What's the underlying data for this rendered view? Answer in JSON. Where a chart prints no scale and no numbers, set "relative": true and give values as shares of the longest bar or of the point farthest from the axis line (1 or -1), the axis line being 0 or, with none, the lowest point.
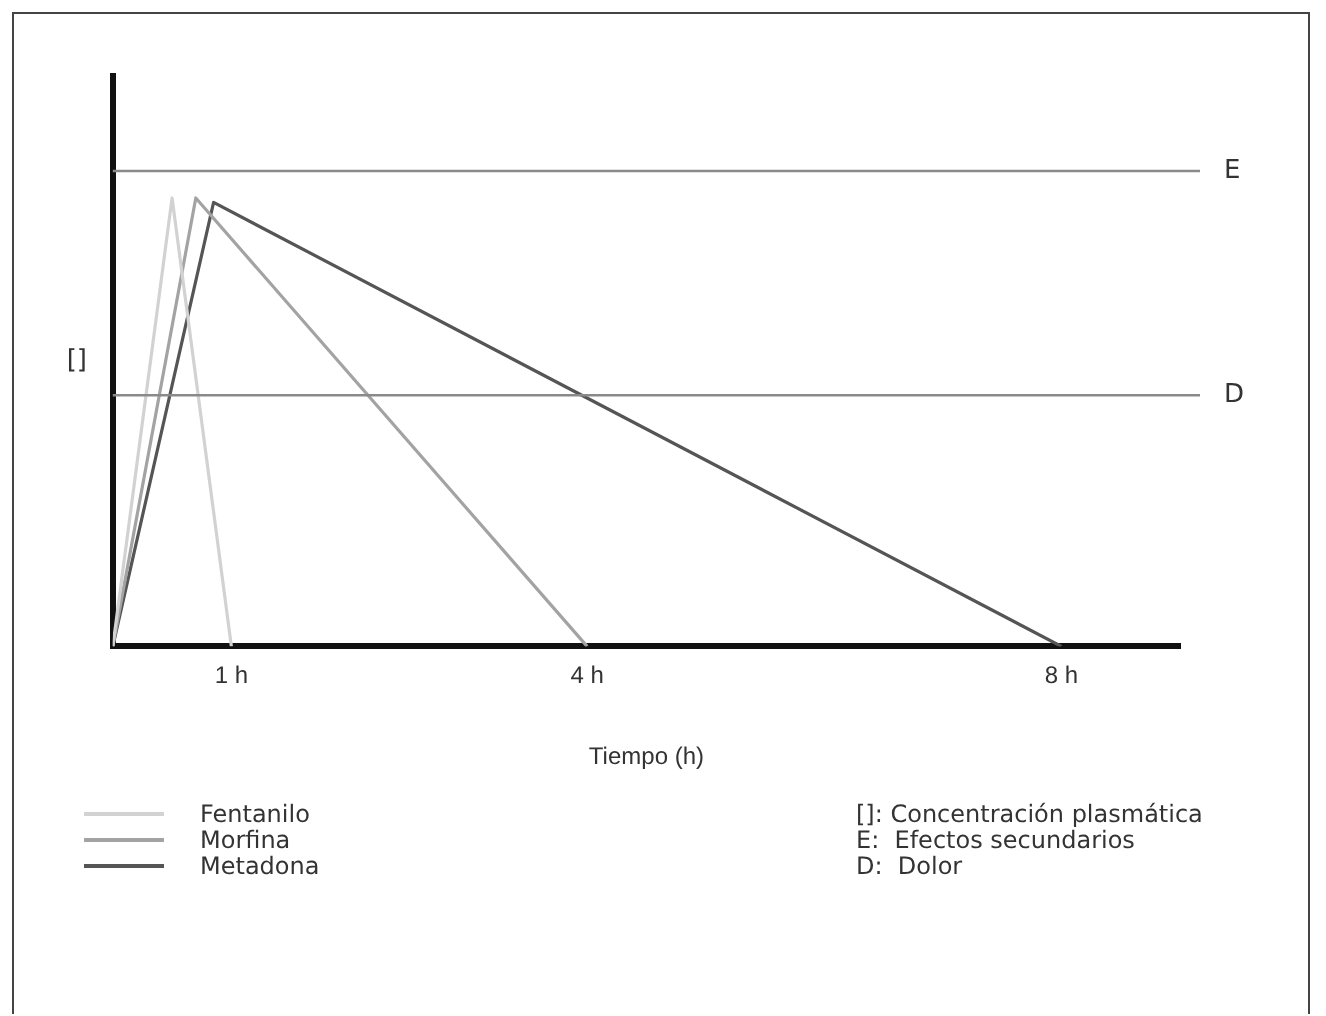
{
  "chart_data": {
    "type": "line",
    "relative": true,
    "xlabel": "Tiempo (h)",
    "ylabel": "[]",
    "xlim": [
      0,
      9
    ],
    "xticks": [
      {
        "value": 1,
        "label": "1 h"
      },
      {
        "value": 4,
        "label": "4 h"
      },
      {
        "value": 8,
        "label": "8 h"
      }
    ],
    "series": [
      {
        "name": "Fentanilo",
        "color": "#d2d2d2",
        "x": [
          0,
          0.5,
          1
        ],
        "values": [
          0,
          1,
          0
        ]
      },
      {
        "name": "Morfina",
        "color": "#a3a3a3",
        "x": [
          0,
          0.7,
          4
        ],
        "values": [
          0,
          1,
          0
        ]
      },
      {
        "name": "Metadona",
        "color": "#555555",
        "x": [
          0,
          0.85,
          8
        ],
        "values": [
          0,
          0.99,
          0
        ]
      }
    ],
    "ref_lines": [
      {
        "axis": "y",
        "value": 1.06,
        "label": "E",
        "color": "#8a8a8a"
      },
      {
        "axis": "y",
        "value": 0.56,
        "label": "D",
        "color": "#8a8a8a"
      }
    ],
    "grid": false,
    "marker": "none",
    "line_style": "solid",
    "legend": "bottom left",
    "annotations": [
      "[]: Concentración plasmática",
      "E:  Efectos secundarios",
      "D:  Dolor"
    ]
  }
}
